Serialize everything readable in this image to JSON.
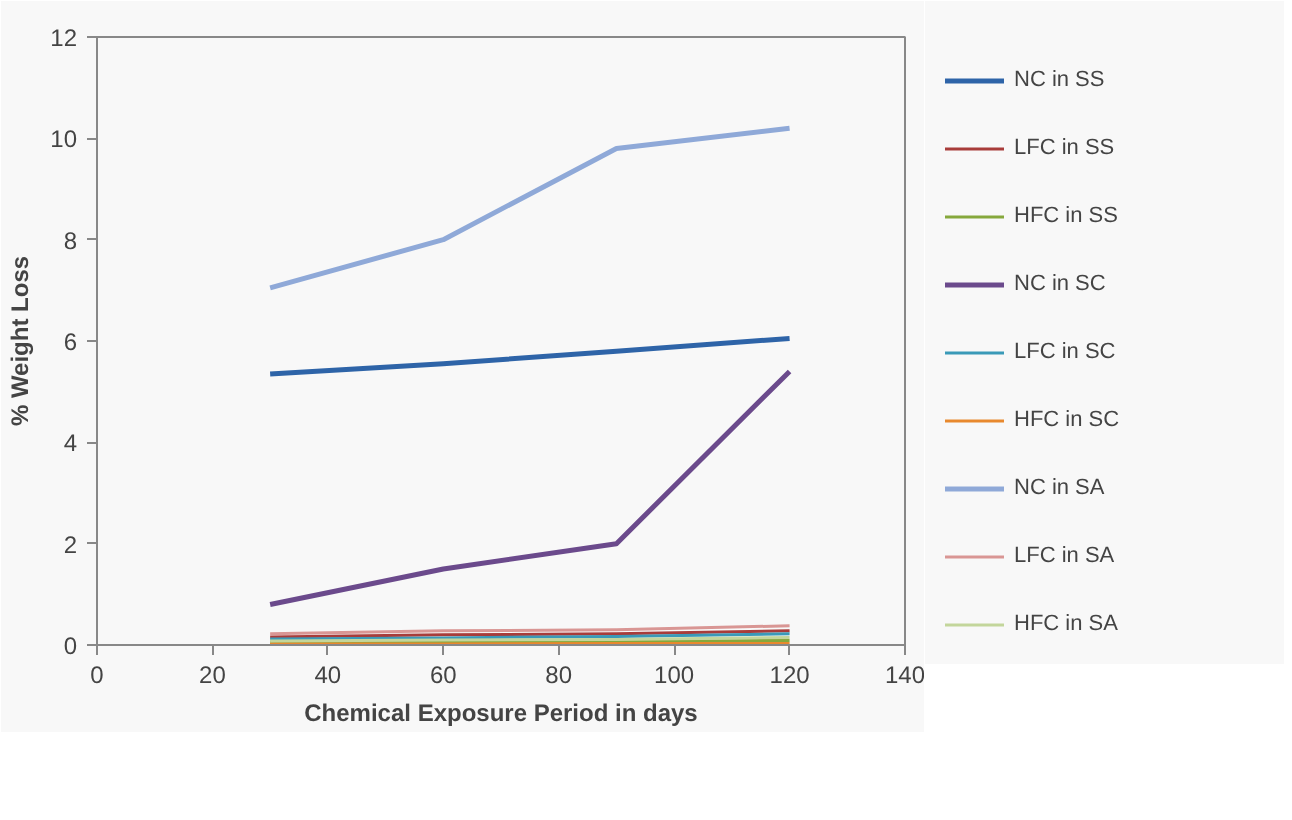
{
  "chart_data": {
    "type": "line",
    "xlabel": "Chemical Exposure Period in days",
    "ylabel": "% Weight Loss",
    "x": [
      30,
      60,
      90,
      120
    ],
    "xlim": [
      0,
      140
    ],
    "xticks": [
      0,
      20,
      40,
      60,
      80,
      100,
      120,
      140
    ],
    "ylim": [
      0,
      12
    ],
    "yticks": [
      0,
      2,
      4,
      6,
      8,
      10,
      12
    ],
    "grid": false,
    "legend": "right",
    "marker": "none",
    "line_style": "solid",
    "series": [
      {
        "name": "NC in SS",
        "color": "#2e64a8",
        "values": [
          5.35,
          5.55,
          5.8,
          6.05
        ]
      },
      {
        "name": "LFC in SS",
        "color": "#a83c3a",
        "values": [
          0.16,
          0.2,
          0.22,
          0.28
        ]
      },
      {
        "name": "HFC in SS",
        "color": "#86a83c",
        "values": [
          0.05,
          0.06,
          0.07,
          0.09
        ]
      },
      {
        "name": "NC in SC",
        "color": "#6b4a8c",
        "values": [
          0.8,
          1.5,
          2.0,
          5.4
        ]
      },
      {
        "name": "LFC in SC",
        "color": "#3a9ab8",
        "values": [
          0.12,
          0.14,
          0.17,
          0.22
        ]
      },
      {
        "name": "HFC in SC",
        "color": "#e8892e",
        "values": [
          0.02,
          0.02,
          0.03,
          0.03
        ]
      },
      {
        "name": "NC in SA",
        "color": "#8fa9d8",
        "values": [
          7.05,
          8.0,
          9.8,
          10.2
        ]
      },
      {
        "name": "LFC in SA",
        "color": "#d99694",
        "values": [
          0.22,
          0.28,
          0.3,
          0.38
        ]
      },
      {
        "name": "HFC in SA",
        "color": "#c3d69b",
        "values": [
          0.08,
          0.1,
          0.11,
          0.15
        ]
      }
    ]
  }
}
